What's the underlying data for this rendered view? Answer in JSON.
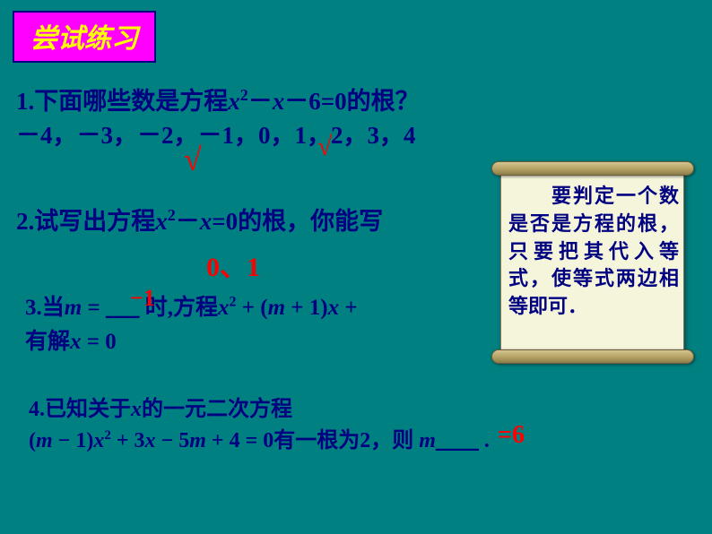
{
  "title": "尝试练习",
  "q1_line1_a": "1.下面哪些数是方程",
  "q1_line1_b": "x",
  "q1_line1_c": "2",
  "q1_line1_d": "－",
  "q1_line1_e": "x",
  "q1_line1_f": "－6=0的根？",
  "q1_line2": "－4，－3，－2，－1，0，1，2，3，4",
  "check": "√",
  "q2_a": "2.试写出方程",
  "q2_b": "x",
  "q2_c": "2",
  "q2_d": "－",
  "q2_e": "x",
  "q2_f": "=0的根，你能写",
  "ans2": "0、1",
  "q3_a": "3.当",
  "q3_b": "m",
  "q3_c": " = ",
  "q3_blank": "___",
  "q3_d": " 时,方程",
  "q3_e": "x",
  "q3_f": "2",
  "q3_g": " + (",
  "q3_h": "m",
  "q3_i": " + 1)",
  "q3_j": "x",
  "q3_k": " +",
  "q3_line2a": "有解",
  "q3_line2b": "x",
  "q3_line2c": " = 0",
  "ans3": "−1",
  "q4_a": "4.已知关于",
  "q4_b": "x",
  "q4_c": "的一元二次方程",
  "q4_line2a": "(",
  "q4_line2b": "m",
  "q4_line2c": " − 1)",
  "q4_line2d": "x",
  "q4_line2e": "2",
  "q4_line2f": " + 3",
  "q4_line2g": "x",
  "q4_line2h": " − 5",
  "q4_line2i": "m",
  "q4_line2j": " + 4 = 0有一根为2，则",
  "q4_line2k": " m",
  "q4_line2l": "____",
  "q4_line2m": " .",
  "ans4": "=6",
  "scroll_text": "　　要判定一个数是否是方程的根，只要把其代入等式，使等式两边相等即可．",
  "colors": {
    "bg": "#008080",
    "title_bg": "#ff00ff",
    "title_text": "#ffff00",
    "body_text": "#000080",
    "answer": "#ff0000",
    "scroll_paper": "#f5f5dc"
  }
}
